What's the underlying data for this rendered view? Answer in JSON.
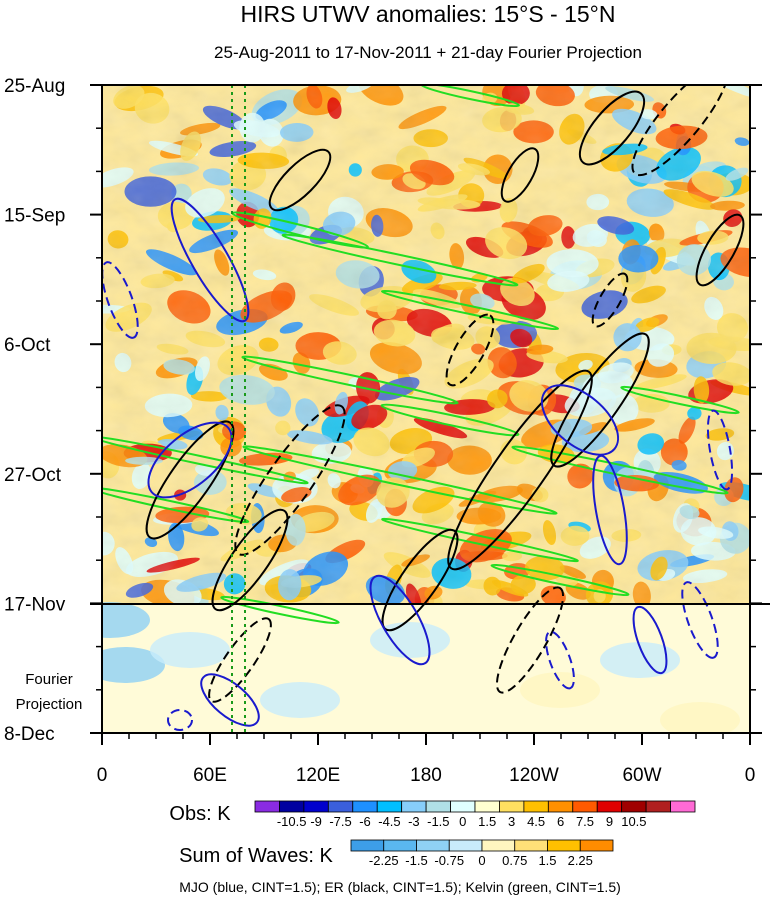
{
  "chart_data": {
    "type": "heatmap",
    "title": "HIRS UTWV anomalies: 15°S - 15°N",
    "subtitle": "25-Aug-2011 to 17-Nov-2011 + 21-day Fourier Projection",
    "x_ticks": [
      "0",
      "60E",
      "120E",
      "180",
      "120W",
      "60W",
      "0"
    ],
    "x_range_deg": [
      0,
      360
    ],
    "y_ticks": [
      "25-Aug",
      "15-Sep",
      "6-Oct",
      "27-Oct",
      "17-Nov",
      "8-Dec"
    ],
    "y_range_days": [
      0,
      105
    ],
    "observation_end_label": "17-Nov",
    "projection_label": [
      "Fourier",
      "Projection"
    ],
    "reference_lines_deg": [
      73,
      80
    ],
    "obs_colorbar": {
      "label": "Obs: K",
      "ticks": [
        "-10.5",
        "-9",
        "-7.5",
        "-6",
        "-4.5",
        "-3",
        "-1.5",
        "0",
        "1.5",
        "3",
        "4.5",
        "6",
        "7.5",
        "9",
        "10.5"
      ],
      "colors": [
        "#8a2be2",
        "#0000a0",
        "#0000cd",
        "#3b5fdc",
        "#1e90ff",
        "#00bfff",
        "#87cefa",
        "#b0e0e6",
        "#e0ffff",
        "#ffffd0",
        "#ffe060",
        "#ffc000",
        "#ff9000",
        "#ff5a00",
        "#e00000",
        "#a00000",
        "#b02020",
        "#ff6ad5"
      ]
    },
    "waves_colorbar": {
      "label": "Sum of Waves: K",
      "ticks": [
        "-2.25",
        "-1.5",
        "-0.75",
        "0",
        "0.75",
        "1.5",
        "2.25"
      ],
      "colors": [
        "#3d9ee8",
        "#5ab7f0",
        "#8fd1f5",
        "#c8ecfb",
        "#fff6c0",
        "#ffe078",
        "#ffc000",
        "#ff8c00"
      ]
    },
    "footnote": "MJO (blue, CINT=1.5); ER (black, CINT=1.5); Kelvin (green, CINT=1.5)",
    "mjo_color": "#1a1acd",
    "er_color": "#000000",
    "kelvin_color": "#22dd22"
  }
}
